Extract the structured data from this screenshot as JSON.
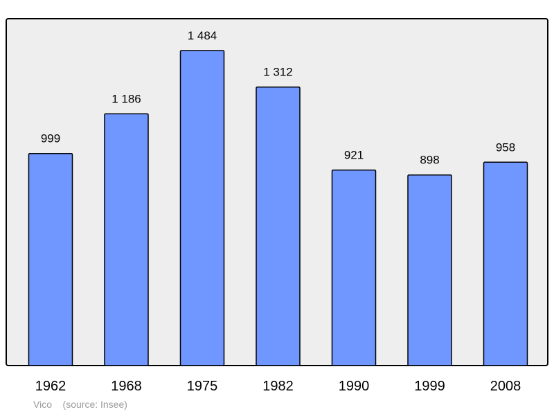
{
  "chart_data": {
    "type": "bar",
    "categories": [
      "1962",
      "1968",
      "1975",
      "1982",
      "1990",
      "1999",
      "2008"
    ],
    "values": [
      999,
      1186,
      1484,
      1312,
      921,
      898,
      958
    ],
    "value_labels": [
      "999",
      "1 186",
      "1 484",
      "1 312",
      "921",
      "898",
      "958"
    ],
    "title": "",
    "xlabel": "",
    "ylabel": "",
    "ylim": [
      0,
      1484
    ],
    "grid": false,
    "legend": "none"
  },
  "caption": {
    "place": "Vico",
    "source": "(source: Insee)"
  },
  "colors": {
    "bar_fill": "#7096ff",
    "bar_stroke": "#000000",
    "plot_background": "#eeeeee",
    "frame_stroke": "#000000",
    "caption_text": "#9a9a9a"
  }
}
